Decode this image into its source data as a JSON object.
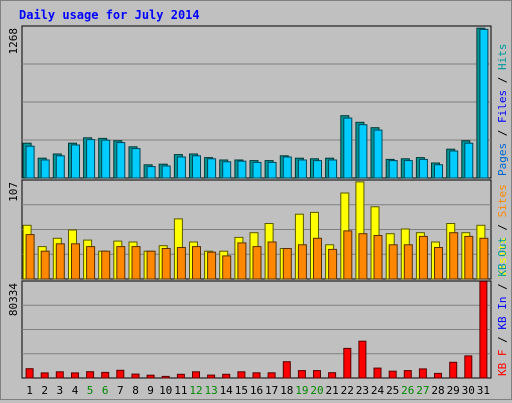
{
  "chart_data": {
    "type": "bar",
    "title": "Daily usage for July 2014",
    "categories": [
      "1",
      "2",
      "3",
      "4",
      "5",
      "6",
      "7",
      "8",
      "9",
      "10",
      "11",
      "12",
      "13",
      "14",
      "15",
      "16",
      "17",
      "18",
      "19",
      "20",
      "21",
      "22",
      "23",
      "24",
      "25",
      "26",
      "27",
      "28",
      "29",
      "30",
      "31"
    ],
    "weekend_days": [
      "5",
      "6",
      "12",
      "13",
      "19",
      "20",
      "26",
      "27"
    ],
    "panels": [
      {
        "name": "hits-files-pages",
        "ymax_label": "1268",
        "ymax": 1268,
        "legend": [
          "Pages",
          "Files",
          "Hits"
        ],
        "series": [
          {
            "name": "Hits",
            "color": "#009999",
            "values": [
              290,
              165,
              200,
              290,
              335,
              330,
              310,
              260,
              110,
              115,
              195,
              200,
              170,
              150,
              150,
              145,
              145,
              185,
              165,
              160,
              165,
              520,
              465,
              420,
              155,
              160,
              170,
              125,
              240,
              310,
              1250
            ]
          },
          {
            "name": "Files",
            "color": "#00ccff",
            "values": [
              265,
              150,
              185,
              275,
              320,
              315,
              295,
              245,
              95,
              100,
              175,
              185,
              160,
              135,
              140,
              130,
              130,
              175,
              150,
              145,
              150,
              500,
              445,
              400,
              145,
              145,
              155,
              110,
              225,
              290,
              1240
            ]
          },
          {
            "name": "Pages",
            "color": "#0066cc",
            "values": [
              0,
              0,
              0,
              0,
              0,
              0,
              0,
              0,
              0,
              0,
              0,
              0,
              0,
              0,
              0,
              0,
              0,
              0,
              0,
              0,
              0,
              0,
              0,
              0,
              0,
              0,
              0,
              0,
              0,
              0,
              0
            ]
          }
        ]
      },
      {
        "name": "visits-sites",
        "ymax_label": "107",
        "ymax": 107,
        "legend": [
          "Visits",
          "Sites"
        ],
        "series": [
          {
            "name": "Visits",
            "color": "#ffff00",
            "values": [
              58,
              35,
              44,
              53,
              42,
              30,
              41,
              40,
              30,
              36,
              65,
              40,
              30,
              30,
              45,
              50,
              60,
              33,
              70,
              72,
              37,
              93,
              105,
              78,
              49,
              54,
              50,
              40,
              60,
              50,
              58
            ]
          },
          {
            "name": "Sites",
            "color": "#ff8800",
            "values": [
              48,
              30,
              38,
              38,
              35,
              30,
              35,
              35,
              30,
              33,
              34,
              35,
              29,
              25,
              39,
              35,
              40,
              33,
              37,
              44,
              32,
              52,
              49,
              47,
              37,
              37,
              46,
              34,
              50,
              46,
              44
            ]
          }
        ]
      },
      {
        "name": "kbytes",
        "ymax_label": "80334",
        "ymax": 80334,
        "legend": [
          "KB F",
          "KB In",
          "KB Out"
        ],
        "series": [
          {
            "name": "KB F",
            "color": "#ff0000",
            "values": [
              7700,
              4200,
              5100,
              4200,
              5200,
              4600,
              6400,
              3200,
              2300,
              1300,
              3100,
              5100,
              2400,
              3100,
              5100,
              4300,
              4300,
              13500,
              6100,
              6100,
              4400,
              24500,
              30500,
              8200,
              5600,
              6100,
              7500,
              3800,
              13000,
              18300,
              80000
            ]
          }
        ]
      }
    ]
  }
}
